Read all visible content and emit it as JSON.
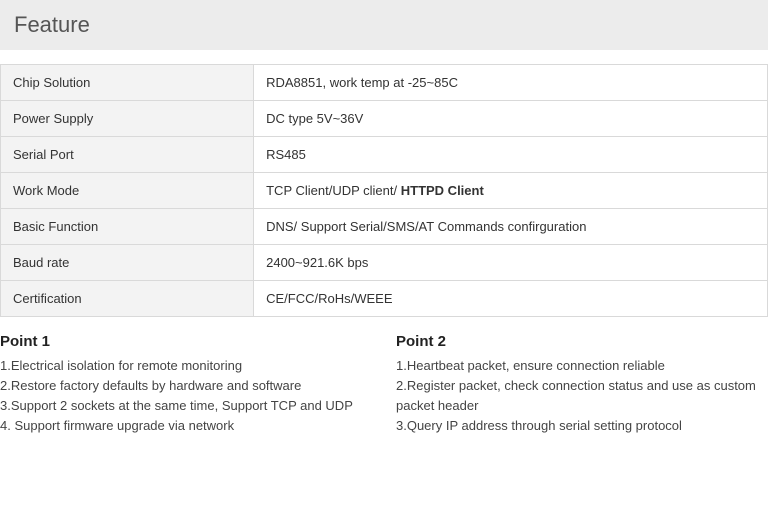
{
  "header": {
    "title": "Feature"
  },
  "table": {
    "rows": [
      {
        "label": "Chip Solution",
        "value": "RDA8851, work temp at -25~85C"
      },
      {
        "label": "Power Supply",
        "value": "DC type 5V~36V"
      },
      {
        "label": "Serial Port",
        "value": "RS485"
      },
      {
        "label": "Work Mode",
        "value_prefix": "TCP Client/UDP client/ ",
        "value_bold": "HTTPD Client"
      },
      {
        "label": "Basic Function",
        "value": "DNS/ Support Serial/SMS/AT Commands confirguration"
      },
      {
        "label": "Baud rate",
        "value": "2400~921.6K bps"
      },
      {
        "label": "Certification",
        "value": "CE/FCC/RoHs/WEEE"
      }
    ]
  },
  "points": {
    "col1": {
      "title": "Point 1",
      "items": [
        "1.Electrical isolation for remote monitoring",
        "2.Restore factory defaults by hardware and software",
        "3.Support 2 sockets at the same time, Support TCP and UDP",
        "4. Support firmware upgrade via network"
      ]
    },
    "col2": {
      "title": "Point 2",
      "items": [
        "1.Heartbeat packet, ensure connection reliable",
        "2.Register packet, check connection status and use as custom packet header",
        "3.Query IP address through serial setting protocol"
      ]
    }
  }
}
